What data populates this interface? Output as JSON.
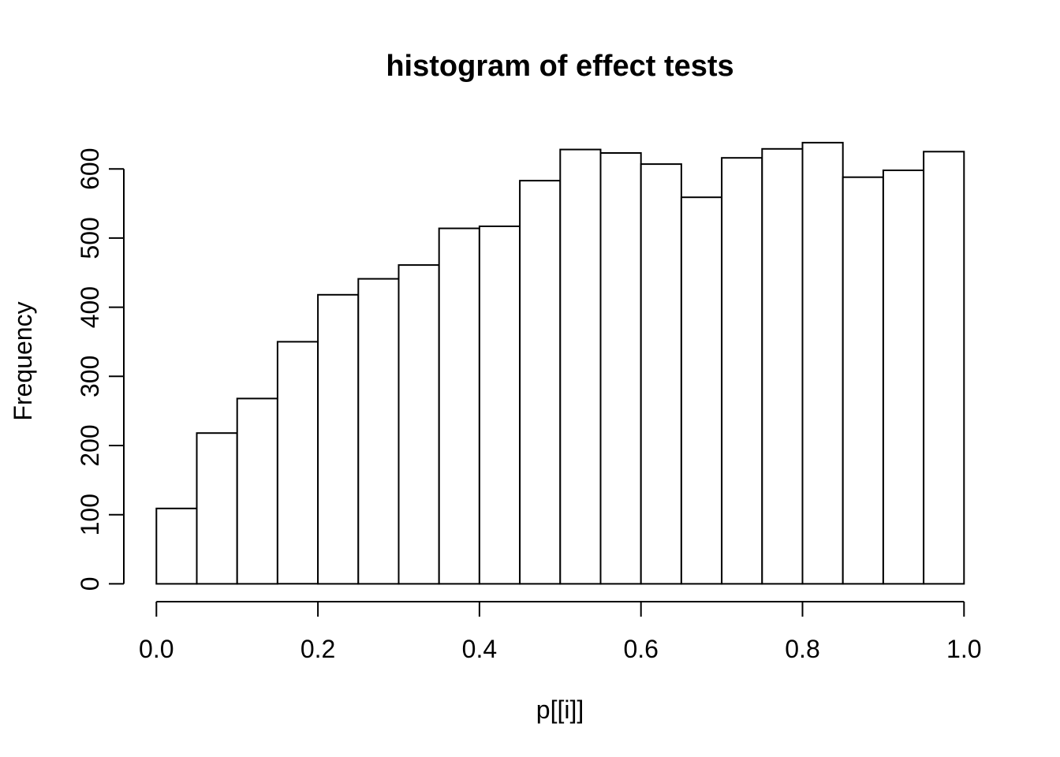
{
  "chart_data": {
    "type": "bar",
    "subtype": "histogram",
    "title": "histogram of effect tests",
    "xlabel": "p[[i]]",
    "ylabel": "Frequency",
    "bin_edges": [
      0.0,
      0.05,
      0.1,
      0.15,
      0.2,
      0.25,
      0.3,
      0.35,
      0.4,
      0.45,
      0.5,
      0.55,
      0.6,
      0.65,
      0.7,
      0.75,
      0.8,
      0.85,
      0.9,
      0.95,
      1.0
    ],
    "counts": [
      109,
      218,
      268,
      350,
      418,
      441,
      461,
      514,
      517,
      583,
      628,
      623,
      607,
      559,
      616,
      629,
      638,
      588,
      598,
      625
    ],
    "xlim": [
      0.0,
      1.0
    ],
    "ylim": [
      0,
      600
    ],
    "x_ticks": [
      0.0,
      0.2,
      0.4,
      0.6,
      0.8,
      1.0
    ],
    "x_tick_labels": [
      "0.0",
      "0.2",
      "0.4",
      "0.6",
      "0.8",
      "1.0"
    ],
    "y_ticks": [
      0,
      100,
      200,
      300,
      400,
      500,
      600
    ],
    "y_tick_labels": [
      "0",
      "100",
      "200",
      "300",
      "400",
      "500",
      "600"
    ],
    "grid": false,
    "legend": false,
    "bar_fill": "#ffffff",
    "line_color": "#000000",
    "background": "#ffffff"
  }
}
